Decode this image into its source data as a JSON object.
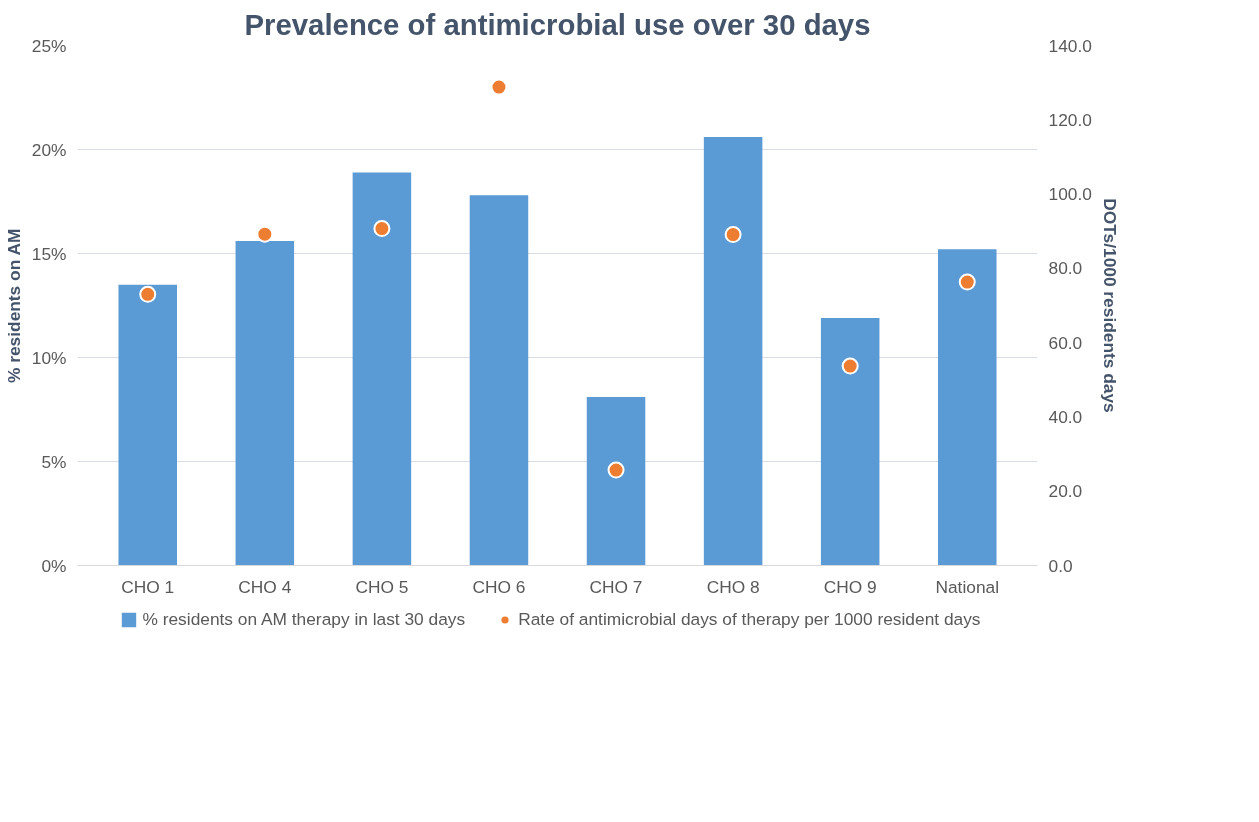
{
  "chart_data": {
    "type": "bar",
    "title": "Prevalence of antimicrobial use over 30 days",
    "ylabel": "% residents on AM",
    "y2label": "DOTs/1000 residents days",
    "categories": [
      "CHO 1",
      "CHO 4",
      "CHO 5",
      "CHO 6",
      "CHO 7",
      "CHO 8",
      "CHO 9",
      "National"
    ],
    "series": [
      {
        "name": "% residents on AM therapy in last 30 days",
        "color": "#5b9bd5",
        "values": [
          13.5,
          15.6,
          18.9,
          17.8,
          8.1,
          20.6,
          11.9,
          15.2
        ]
      },
      {
        "name": "Rate of antimicrobial days of therapy per 1000 resident days",
        "type": "scatter",
        "axis": "y2",
        "color": "#ed7d31",
        "marker": "circle",
        "values": [
          73.0,
          89.2,
          90.7,
          128.8,
          25.7,
          89.1,
          53.7,
          76.3
        ]
      }
    ],
    "ylim": [
      0,
      25
    ],
    "yticks": [
      {
        "value": 0,
        "label": "0%"
      },
      {
        "value": 5,
        "label": "5%"
      },
      {
        "value": 10,
        "label": "10%"
      },
      {
        "value": 15,
        "label": "15%"
      },
      {
        "value": 20,
        "label": "20%"
      },
      {
        "value": 25,
        "label": "25%"
      }
    ],
    "y2lim": [
      0,
      140
    ],
    "y2ticks": [
      {
        "value": 0,
        "label": "0.0"
      },
      {
        "value": 20,
        "label": "20.0"
      },
      {
        "value": 40,
        "label": "40.0"
      },
      {
        "value": 60,
        "label": "60.0"
      },
      {
        "value": 80,
        "label": "80.0"
      },
      {
        "value": 100,
        "label": "100.0"
      },
      {
        "value": 120,
        "label": "120.0"
      },
      {
        "value": 140,
        "label": "140.0"
      }
    ],
    "grid": "y",
    "legend": "bottom"
  }
}
